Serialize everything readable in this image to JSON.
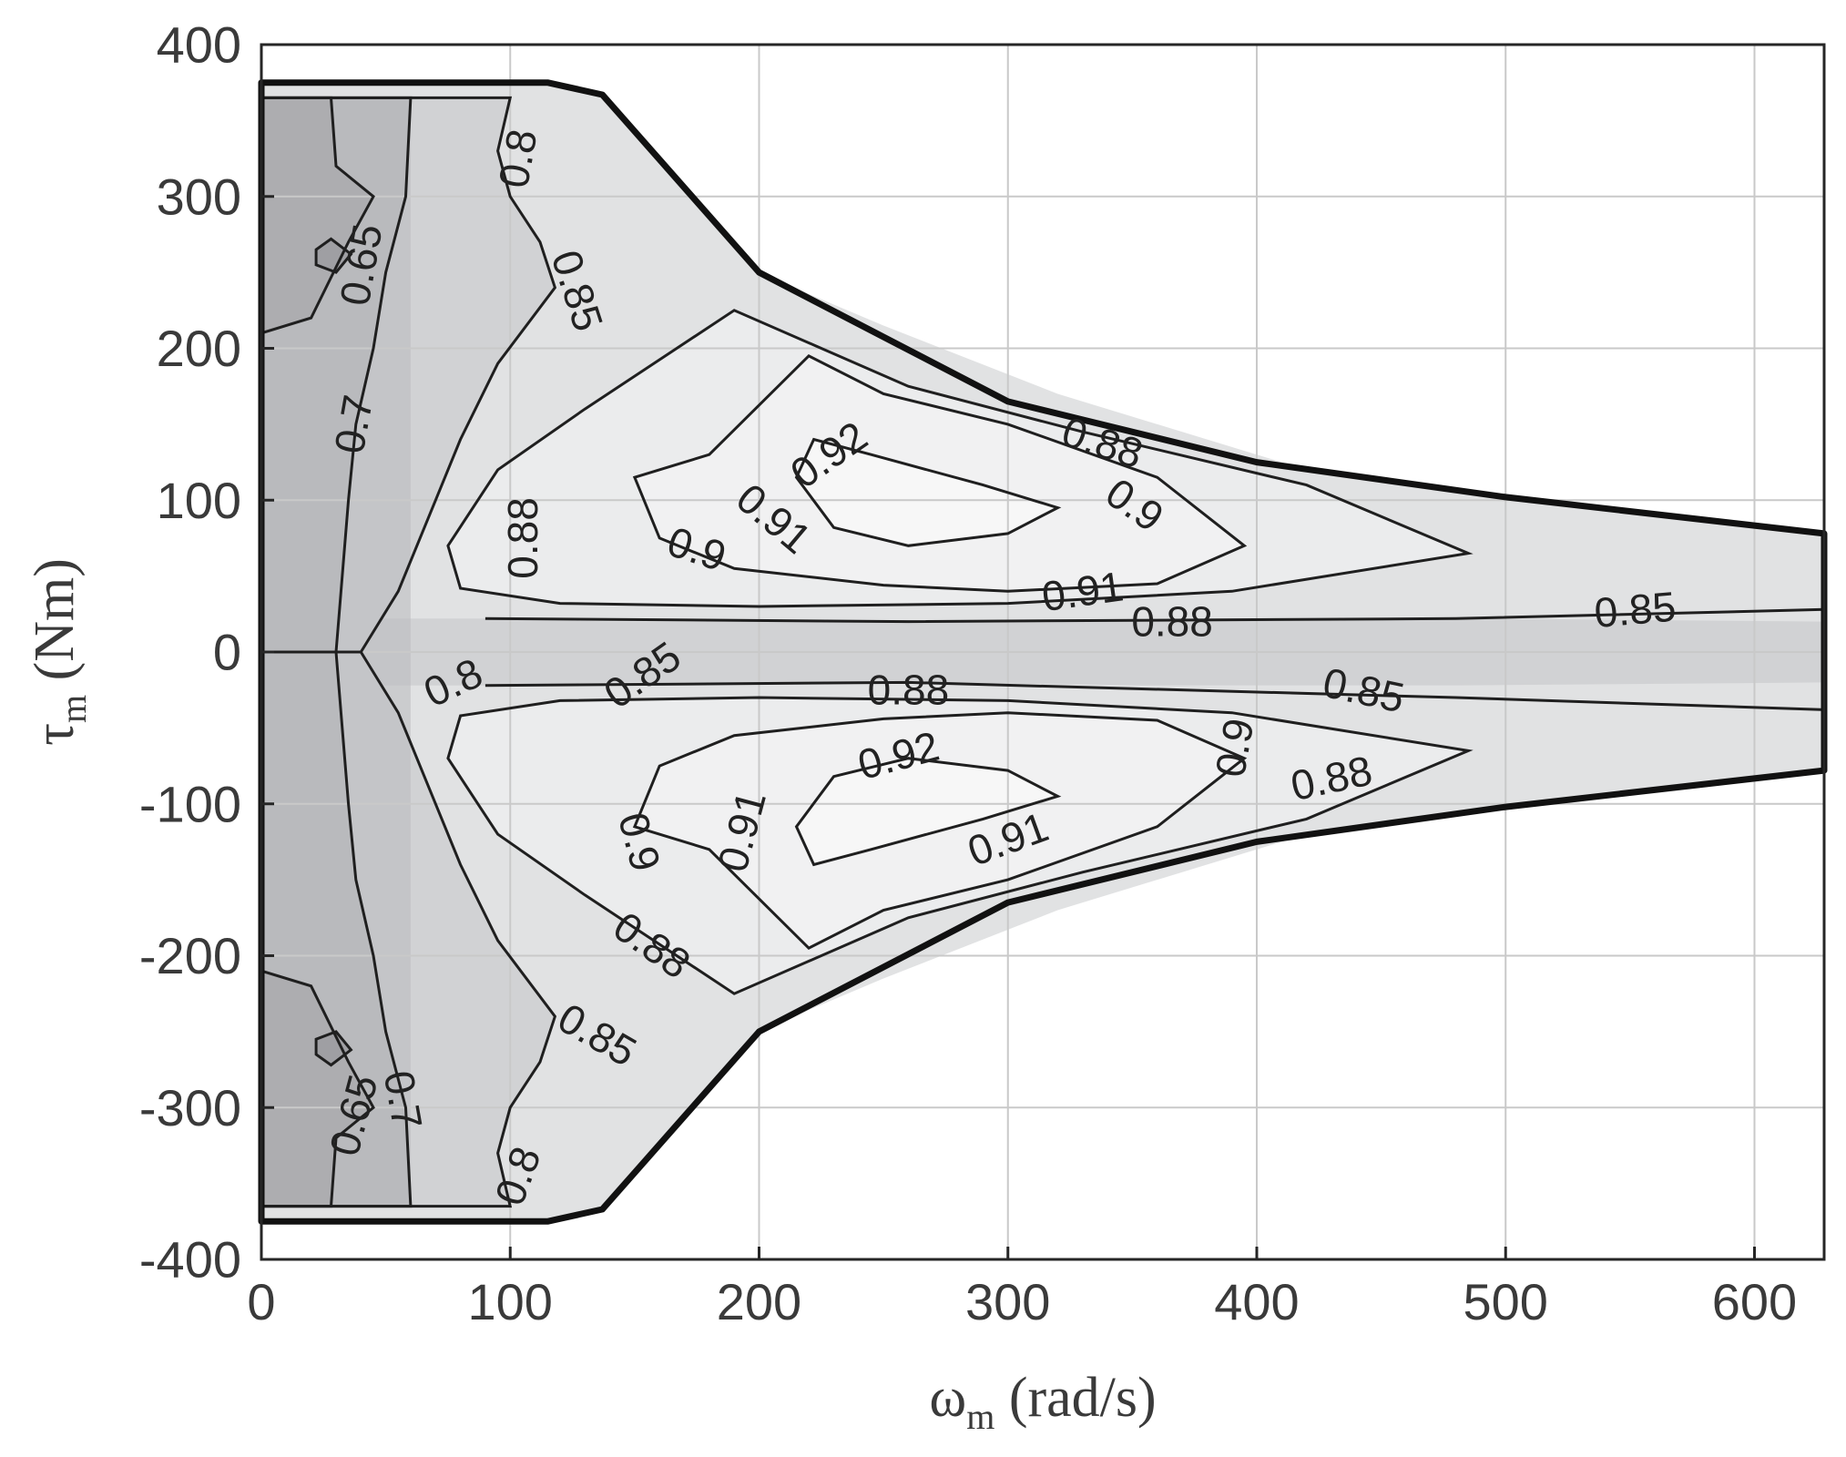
{
  "chart_data": {
    "type": "contour",
    "xlabel": {
      "symbol": "ω",
      "sub": "m",
      "unit": " (rad/s)"
    },
    "ylabel": {
      "symbol": "τ",
      "sub": "m",
      "unit": " (Nm)"
    },
    "xlim": [
      0,
      628
    ],
    "ylim": [
      -400,
      400
    ],
    "x_ticks": [
      0,
      100,
      200,
      300,
      400,
      500,
      600
    ],
    "y_ticks": [
      400,
      300,
      200,
      100,
      0,
      -100,
      -200,
      -300,
      -400
    ],
    "grid": true,
    "colormap": "gray",
    "fill_colors": {
      "lt_0.65": "#7f7f84",
      "0.65_0.7": "#9d9da1",
      "0.7_0.8": "#b9babd",
      "0.8_0.85": "#d1d2d4",
      "0.85_0.88": "#e1e2e3",
      "0.88_0.9": "#ebeced",
      "0.9_0.92": "#f1f1f2",
      "gt_0.92": "#f7f7f7"
    },
    "contour_levels": [
      0.65,
      0.7,
      0.8,
      0.85,
      0.88,
      0.9,
      0.91,
      0.92
    ],
    "operating_envelope": [
      [
        0,
        375
      ],
      [
        115,
        375
      ],
      [
        137,
        367
      ],
      [
        200,
        250
      ],
      [
        300,
        165
      ],
      [
        400,
        125
      ],
      [
        500,
        102
      ],
      [
        628,
        78
      ],
      [
        628,
        -78
      ],
      [
        500,
        -102
      ],
      [
        400,
        -125
      ],
      [
        300,
        -165
      ],
      [
        200,
        -250
      ],
      [
        137,
        -367
      ],
      [
        115,
        -375
      ],
      [
        0,
        -375
      ]
    ],
    "contour_labels": [
      {
        "text": "0.65",
        "x": 40,
        "y": 255,
        "angle": -80
      },
      {
        "text": "0.7",
        "x": 37,
        "y": 150,
        "angle": -80
      },
      {
        "text": "0.8",
        "x": 103,
        "y": 325,
        "angle": -80
      },
      {
        "text": "0.85",
        "x": 127,
        "y": 238,
        "angle": 72
      },
      {
        "text": "0.88",
        "x": 105,
        "y": 75,
        "angle": -90
      },
      {
        "text": "0.92",
        "x": 228,
        "y": 130,
        "angle": -35
      },
      {
        "text": "0.91",
        "x": 206,
        "y": 88,
        "angle": 40
      },
      {
        "text": "0.9",
        "x": 175,
        "y": 68,
        "angle": 18
      },
      {
        "text": "0.88",
        "x": 338,
        "y": 138,
        "angle": 18
      },
      {
        "text": "0.9",
        "x": 351,
        "y": 97,
        "angle": 35
      },
      {
        "text": "0.91",
        "x": 330,
        "y": 40,
        "angle": -8
      },
      {
        "text": "0.88",
        "x": 366,
        "y": 20,
        "angle": 0
      },
      {
        "text": "0.85",
        "x": 552,
        "y": 28,
        "angle": -5
      },
      {
        "text": "0.8",
        "x": 77,
        "y": -20,
        "angle": -25
      },
      {
        "text": "0.85",
        "x": 153,
        "y": -15,
        "angle": -35
      },
      {
        "text": "0.88",
        "x": 260,
        "y": -25,
        "angle": 0
      },
      {
        "text": "0.85",
        "x": 443,
        "y": -25,
        "angle": 12
      },
      {
        "text": "0.92",
        "x": 256,
        "y": -68,
        "angle": -15
      },
      {
        "text": "0.9",
        "x": 391,
        "y": -63,
        "angle": -80
      },
      {
        "text": "0.88",
        "x": 430,
        "y": -83,
        "angle": -12
      },
      {
        "text": "0.91",
        "x": 193,
        "y": -118,
        "angle": -75
      },
      {
        "text": "0.91",
        "x": 300,
        "y": -123,
        "angle": -20
      },
      {
        "text": "0.9",
        "x": 152,
        "y": -125,
        "angle": 75
      },
      {
        "text": "0.88",
        "x": 157,
        "y": -193,
        "angle": 35
      },
      {
        "text": "0.85",
        "x": 135,
        "y": -252,
        "angle": 30
      },
      {
        "text": "0.65",
        "x": 37,
        "y": -305,
        "angle": -75
      },
      {
        "text": "0.7",
        "x": 57,
        "y": -295,
        "angle": 80
      },
      {
        "text": "0.8",
        "x": 103,
        "y": -345,
        "angle": -70
      }
    ]
  }
}
